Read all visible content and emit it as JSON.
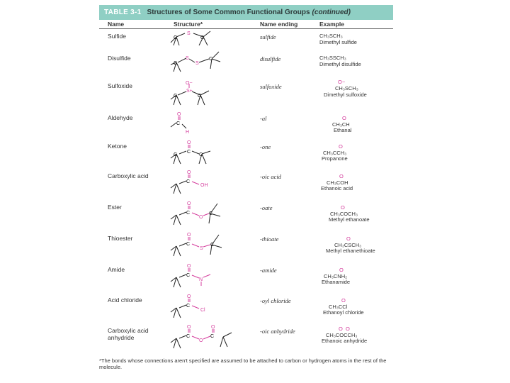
{
  "header": {
    "table_number": "TABLE 3-1",
    "title": "Structures of Some Common Functional Groups",
    "continued": "(continued)"
  },
  "columns": {
    "name": "Name",
    "structure": "Structure*",
    "ending": "Name ending",
    "example": "Example"
  },
  "rows": [
    {
      "name": "Sulfide",
      "ending": "sulfide",
      "example_formula": "CH₃SCH₃",
      "example_name": "Dimethyl sulfide",
      "atoms": [
        "C",
        "S",
        "C"
      ]
    },
    {
      "name": "Disulfide",
      "ending": "disulfide",
      "example_formula": "CH₃SSCH₃",
      "example_name": "Dimethyl disulfide",
      "atoms": [
        "C",
        "S",
        "S",
        "C"
      ]
    },
    {
      "name": "Sulfoxide",
      "ending": "sulfoxide",
      "example_formula": "CH₃SCH₃",
      "example_name": "Dimethyl sulfoxide",
      "atoms": [
        "O−",
        "S+",
        "C",
        "C"
      ]
    },
    {
      "name": "Aldehyde",
      "ending": "-al",
      "example_formula": "CH₃CH",
      "example_name": "Ethanal",
      "atoms": [
        "O",
        "C",
        "H"
      ]
    },
    {
      "name": "Ketone",
      "ending": "-one",
      "example_formula": "CH₃CCH₃",
      "example_name": "Propanone",
      "atoms": [
        "O",
        "C",
        "C",
        "C"
      ]
    },
    {
      "name": "Carboxylic acid",
      "ending": "-oic acid",
      "example_formula": "CH₃COH",
      "example_name": "Ethanoic acid",
      "atoms": [
        "O",
        "C",
        "OH"
      ]
    },
    {
      "name": "Ester",
      "ending": "-oate",
      "example_formula": "CH₃COCH₃",
      "example_name": "Methyl ethanoate",
      "atoms": [
        "O",
        "C",
        "O",
        "C"
      ]
    },
    {
      "name": "Thioester",
      "ending": "-thioate",
      "example_formula": "CH₃CSCH₃",
      "example_name": "Methyl ethanethioate",
      "atoms": [
        "O",
        "C",
        "S",
        "C"
      ]
    },
    {
      "name": "Amide",
      "ending": "-amide",
      "example_formula": "CH₃CNH₂",
      "example_name": "Ethanamide",
      "atoms": [
        "O",
        "C",
        "N"
      ]
    },
    {
      "name": "Acid chloride",
      "ending": "-oyl chloride",
      "example_formula": "CH₃CCl",
      "example_name": "Ethanoyl chloride",
      "atoms": [
        "O",
        "C",
        "Cl"
      ]
    },
    {
      "name": "Carboxylic acid anhydride",
      "ending": "-oic anhydride",
      "example_formula": "CH₃COCCH₃",
      "example_name": "Ethanoic anhydride",
      "atoms": [
        "O",
        "O",
        "C",
        "O",
        "C"
      ]
    }
  ],
  "example_oxygen": "O",
  "example_oxygen_minus": "O−",
  "footnote": "*The bonds whose connections aren't specified are assumed to be attached to carbon or hydrogen atoms in the rest of the molecule."
}
